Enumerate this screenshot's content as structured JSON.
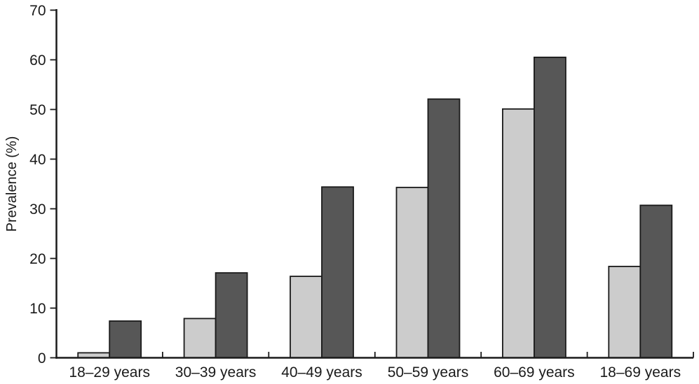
{
  "chart_data": {
    "type": "bar",
    "title": "",
    "xlabel": "",
    "ylabel": "Prevalence (%)",
    "categories": [
      "18–29 years",
      "30–39 years",
      "40–49 years",
      "50–59 years",
      "60–69 years",
      "18–69 years"
    ],
    "series": [
      {
        "name": "light-gray-bars",
        "color": "#cccccc",
        "values": [
          1.0,
          7.9,
          16.4,
          34.3,
          50.1,
          18.4
        ]
      },
      {
        "name": "dark-gray-bars",
        "color": "#575757",
        "values": [
          7.4,
          17.1,
          34.4,
          52.1,
          60.5,
          30.7
        ]
      }
    ],
    "y_ticks": [
      0,
      10,
      20,
      30,
      40,
      50,
      60,
      70
    ],
    "ylim": [
      0,
      70
    ],
    "grid": false,
    "legend": "none",
    "colors": {
      "axis": "#1a1a1a",
      "bar_outline": "#1a1a1a",
      "background": "#ffffff"
    }
  }
}
